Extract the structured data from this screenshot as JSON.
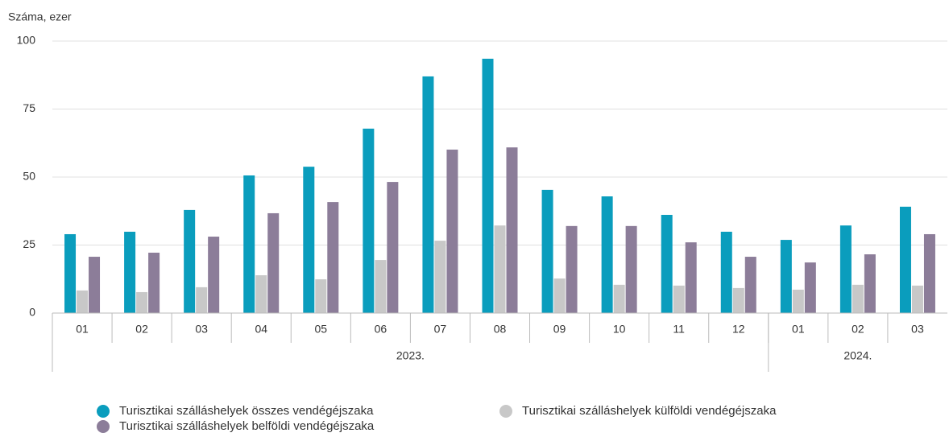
{
  "chart_data": {
    "type": "bar",
    "y_axis_label": "Száma, ezer",
    "categories": [
      "01",
      "02",
      "03",
      "04",
      "05",
      "06",
      "07",
      "08",
      "09",
      "10",
      "11",
      "12",
      "01",
      "02",
      "03"
    ],
    "x_groups": [
      {
        "label": "2023.",
        "count": 12
      },
      {
        "label": "2024.",
        "count": 3
      }
    ],
    "series": [
      {
        "name": "Turisztikai szálláshelyek összes vendégéjszaka",
        "color": "#0a9dbd",
        "values": [
          29.0,
          29.9,
          37.9,
          50.6,
          53.8,
          67.8,
          87.0,
          93.5,
          45.3,
          42.9,
          36.1,
          29.9,
          26.9,
          32.2,
          39.1
        ]
      },
      {
        "name": "Turisztikai szálláshelyek külföldi vendégéjszaka",
        "color": "#c8c8c8",
        "values": [
          8.3,
          7.7,
          9.5,
          13.9,
          12.4,
          19.5,
          26.6,
          32.2,
          12.7,
          10.4,
          10.1,
          9.2,
          8.6,
          10.4,
          10.1
        ]
      },
      {
        "name": "Turisztikai szálláshelyek belföldi vendégéjszaka",
        "color": "#8c7d99",
        "values": [
          20.7,
          22.2,
          28.1,
          36.7,
          40.8,
          48.2,
          60.1,
          60.9,
          32.0,
          32.0,
          26.0,
          20.7,
          18.6,
          21.6,
          29.0
        ]
      }
    ],
    "ylim": [
      0,
      100
    ],
    "yticks": [
      0,
      25,
      50,
      75,
      100
    ],
    "grid": true
  }
}
